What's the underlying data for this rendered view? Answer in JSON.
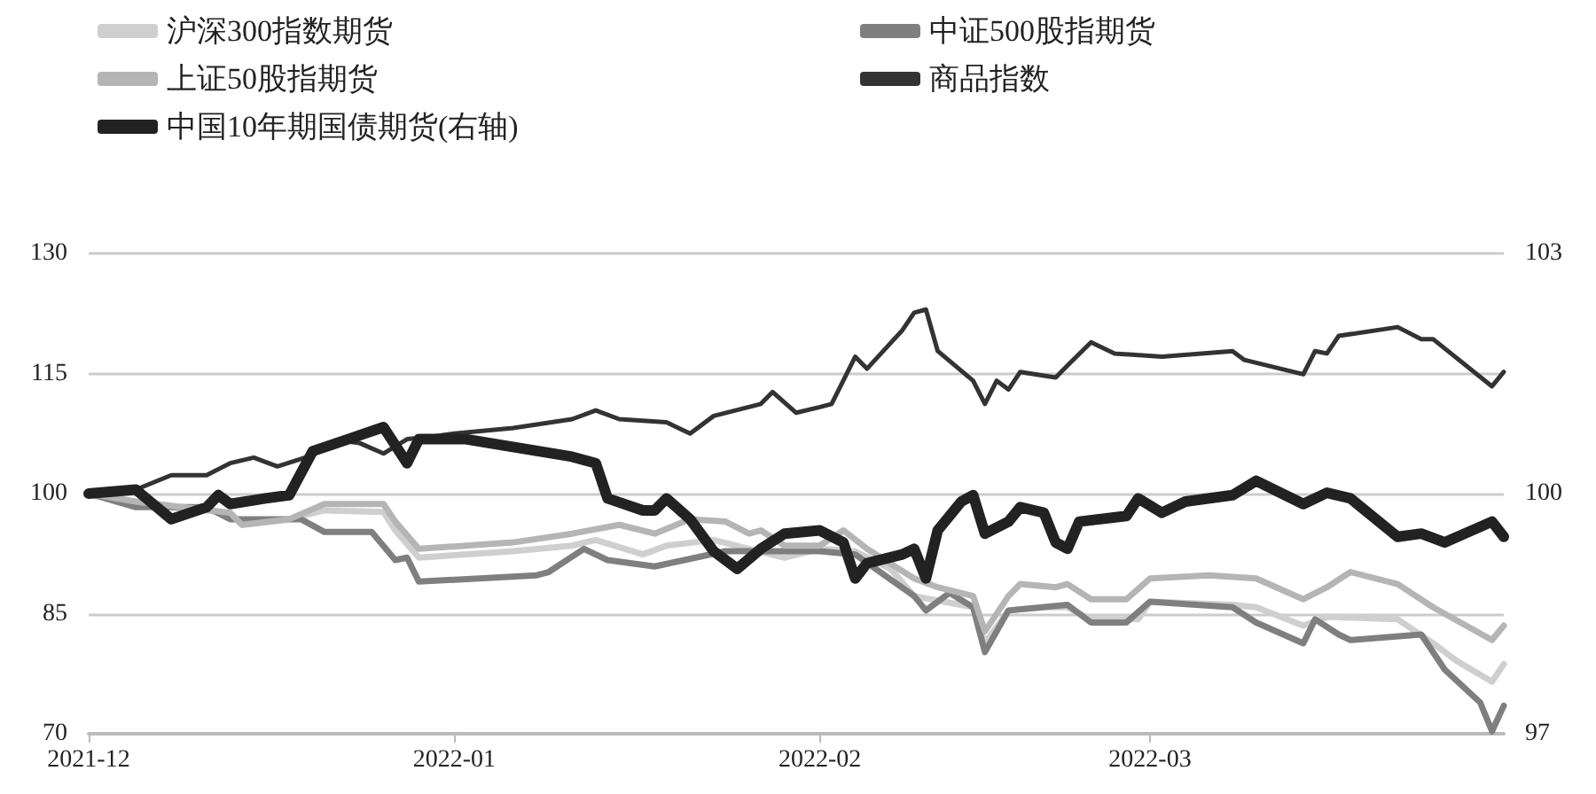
{
  "chart_data": {
    "type": "line",
    "xlim": [
      "2021-12-01",
      "2022-03-31"
    ],
    "xticks": [
      {
        "value": "2021-12-01",
        "label": "2021-12"
      },
      {
        "value": "2022-01-01",
        "label": "2022-01"
      },
      {
        "value": "2022-02-01",
        "label": "2022-02"
      },
      {
        "value": "2022-03-01",
        "label": "2022-03"
      }
    ],
    "ylim": [
      70,
      130
    ],
    "yticks": [
      70,
      85,
      100,
      115,
      130
    ],
    "y2lim": [
      97,
      103
    ],
    "y2ticks": [
      97,
      100,
      103
    ],
    "grid": "y",
    "legend": "top",
    "marker": "none",
    "line_style": "solid",
    "series": [
      {
        "name": "沪深300指数期货",
        "color": "#cfcfcf",
        "x": [
          "2021-12-01",
          "2021-12-05",
          "2021-12-13",
          "2021-12-14",
          "2021-12-18",
          "2021-12-21",
          "2021-12-26",
          "2021-12-27",
          "2021-12-29",
          "2022-01-06",
          "2022-01-11",
          "2022-01-13",
          "2022-01-17",
          "2022-01-19",
          "2022-01-23",
          "2022-01-26",
          "2022-01-29",
          "2022-02-01",
          "2022-02-04",
          "2022-02-07",
          "2022-02-09",
          "2022-02-14",
          "2022-02-15",
          "2022-02-17",
          "2022-02-20",
          "2022-02-22",
          "2022-02-24",
          "2022-02-28",
          "2022-03-01",
          "2022-03-08",
          "2022-03-10",
          "2022-03-14",
          "2022-03-16",
          "2022-03-22",
          "2022-03-25",
          "2022-03-27",
          "2022-03-30",
          "2022-03-31"
        ],
        "values": [
          100,
          98.7,
          97.6,
          96.1,
          96.8,
          97.9,
          97.7,
          95.4,
          92,
          92.8,
          93.5,
          94.2,
          92.4,
          93.5,
          94.2,
          93.1,
          92,
          93.1,
          92.8,
          90.6,
          87.2,
          85.8,
          81.3,
          85.4,
          85.8,
          85.8,
          84.3,
          84.3,
          86.5,
          86.1,
          85.8,
          83.5,
          84.6,
          84.3,
          81.3,
          79.1,
          76.5,
          78.7
        ]
      },
      {
        "name": "中证500股指期货",
        "color": "#7f7f7f",
        "x": [
          "2021-12-01",
          "2021-12-05",
          "2021-12-11",
          "2021-12-13",
          "2021-12-19",
          "2021-12-21",
          "2021-12-25",
          "2021-12-27",
          "2021-12-28",
          "2021-12-29",
          "2022-01-08",
          "2022-01-09",
          "2022-01-12",
          "2022-01-14",
          "2022-01-18",
          "2022-01-24",
          "2022-01-29",
          "2022-02-01",
          "2022-02-04",
          "2022-02-09",
          "2022-02-10",
          "2022-02-12",
          "2022-02-14",
          "2022-02-15",
          "2022-02-17",
          "2022-02-22",
          "2022-02-24",
          "2022-02-27",
          "2022-03-01",
          "2022-03-08",
          "2022-03-10",
          "2022-03-14",
          "2022-03-15",
          "2022-03-17",
          "2022-03-18",
          "2022-03-24",
          "2022-03-26",
          "2022-03-29",
          "2022-03-30",
          "2022-03-31"
        ],
        "values": [
          100,
          98.3,
          98.3,
          96.8,
          96.8,
          95.2,
          95.2,
          91.7,
          92,
          89,
          89.8,
          90.2,
          93.1,
          91.7,
          90.9,
          92.8,
          92.8,
          92.8,
          92.4,
          87.2,
          85.4,
          87.6,
          85.8,
          80.2,
          85.4,
          86.1,
          83.9,
          83.9,
          86.5,
          85.8,
          83.9,
          81.3,
          84.3,
          82.4,
          81.7,
          82.4,
          78,
          73.9,
          70.3,
          73.5
        ]
      },
      {
        "name": "上证50股指期货",
        "color": "#b5b5b5",
        "x": [
          "2021-12-01",
          "2021-12-05",
          "2021-12-13",
          "2021-12-14",
          "2021-12-18",
          "2021-12-21",
          "2021-12-26",
          "2021-12-27",
          "2021-12-29",
          "2022-01-06",
          "2022-01-11",
          "2022-01-15",
          "2022-01-18",
          "2022-01-21",
          "2022-01-24",
          "2022-01-26",
          "2022-01-27",
          "2022-01-29",
          "2022-02-01",
          "2022-02-03",
          "2022-02-05",
          "2022-02-09",
          "2022-02-11",
          "2022-02-14",
          "2022-02-15",
          "2022-02-17",
          "2022-02-18",
          "2022-02-21",
          "2022-02-22",
          "2022-02-24",
          "2022-02-27",
          "2022-03-01",
          "2022-03-06",
          "2022-03-10",
          "2022-03-14",
          "2022-03-16",
          "2022-03-18",
          "2022-03-22",
          "2022-03-25",
          "2022-03-30",
          "2022-03-31"
        ],
        "values": [
          100,
          99,
          97.6,
          96.1,
          96.8,
          98.7,
          98.7,
          96.5,
          93.1,
          93.9,
          95,
          96.1,
          95,
          96.8,
          96.5,
          95,
          95.4,
          93.5,
          93.5,
          95.4,
          93.1,
          89.4,
          88.3,
          87.2,
          82.8,
          87.2,
          88.7,
          88.3,
          88.7,
          86.8,
          86.8,
          89.4,
          89.8,
          89.4,
          86.8,
          88.3,
          90.2,
          88.7,
          85.8,
          81.7,
          83.5
        ]
      },
      {
        "name": "商品指数",
        "color": "#333333",
        "x": [
          "2021-12-01",
          "2021-12-05",
          "2021-12-08",
          "2021-12-11",
          "2021-12-13",
          "2021-12-15",
          "2021-12-17",
          "2021-12-20",
          "2021-12-22",
          "2021-12-24",
          "2021-12-26",
          "2021-12-28",
          "2021-12-30",
          "2022-01-01",
          "2022-01-06",
          "2022-01-11",
          "2022-01-13",
          "2022-01-15",
          "2022-01-19",
          "2022-01-21",
          "2022-01-23",
          "2022-01-27",
          "2022-01-28",
          "2022-01-30",
          "2022-02-01",
          "2022-02-02",
          "2022-02-04",
          "2022-02-05",
          "2022-02-08",
          "2022-02-09",
          "2022-02-10",
          "2022-02-11",
          "2022-02-14",
          "2022-02-15",
          "2022-02-16",
          "2022-02-17",
          "2022-02-18",
          "2022-02-21",
          "2022-02-22",
          "2022-02-24",
          "2022-02-26",
          "2022-03-02",
          "2022-03-08",
          "2022-03-09",
          "2022-03-14",
          "2022-03-15",
          "2022-03-16",
          "2022-03-17",
          "2022-03-22",
          "2022-03-24",
          "2022-03-25",
          "2022-03-30",
          "2022-03-31"
        ],
        "values": [
          100,
          100.5,
          102.3,
          102.3,
          103.8,
          104.5,
          103.4,
          104.8,
          106.7,
          106.3,
          105,
          106.8,
          107.1,
          107.5,
          108.2,
          109.3,
          110.4,
          109.3,
          108.9,
          107.5,
          109.7,
          111.2,
          112.7,
          110.1,
          110.8,
          111.2,
          117.1,
          115.6,
          120.4,
          122.6,
          123,
          117.8,
          114.1,
          111.2,
          114.1,
          113,
          115.2,
          114.5,
          116,
          118.9,
          117.5,
          117.1,
          117.8,
          116.7,
          114.9,
          117.8,
          117.5,
          119.7,
          120.8,
          119.3,
          119.3,
          113.4,
          115.2
        ]
      },
      {
        "name": "中国10年期国债期货(右轴)",
        "color": "#222222",
        "axis": "y2",
        "x": [
          "2021-12-01",
          "2021-12-05",
          "2021-12-08",
          "2021-12-11",
          "2021-12-12",
          "2021-12-13",
          "2021-12-16",
          "2021-12-18",
          "2021-12-20",
          "2021-12-23",
          "2021-12-26",
          "2021-12-28",
          "2021-12-29",
          "2022-01-02",
          "2022-01-11",
          "2022-01-13",
          "2022-01-14",
          "2022-01-17",
          "2022-01-18",
          "2022-01-19",
          "2022-01-21",
          "2022-01-23",
          "2022-01-25",
          "2022-01-27",
          "2022-01-29",
          "2022-02-01",
          "2022-02-03",
          "2022-02-04",
          "2022-02-05",
          "2022-02-08",
          "2022-02-09",
          "2022-02-10",
          "2022-02-11",
          "2022-02-13",
          "2022-02-14",
          "2022-02-15",
          "2022-02-17",
          "2022-02-18",
          "2022-02-20",
          "2022-02-21",
          "2022-02-22",
          "2022-02-23",
          "2022-02-27",
          "2022-02-28",
          "2022-03-02",
          "2022-03-04",
          "2022-03-08",
          "2022-03-10",
          "2022-03-14",
          "2022-03-16",
          "2022-03-18",
          "2022-03-22",
          "2022-03-24",
          "2022-03-26",
          "2022-03-30",
          "2022-03-31"
        ],
        "values": [
          100,
          100.05,
          99.68,
          99.83,
          99.98,
          99.87,
          99.94,
          99.98,
          100.53,
          100.68,
          100.83,
          100.38,
          100.68,
          100.68,
          100.46,
          100.38,
          99.94,
          99.79,
          99.79,
          99.94,
          99.68,
          99.28,
          99.06,
          99.31,
          99.5,
          99.54,
          99.39,
          98.94,
          99.13,
          99.24,
          99.31,
          98.94,
          99.54,
          99.9,
          99.98,
          99.5,
          99.65,
          99.83,
          99.76,
          99.39,
          99.31,
          99.65,
          99.72,
          99.94,
          99.76,
          99.9,
          99.98,
          100.16,
          99.87,
          100.01,
          99.94,
          99.46,
          99.5,
          99.39,
          99.65,
          99.46
        ]
      }
    ]
  }
}
